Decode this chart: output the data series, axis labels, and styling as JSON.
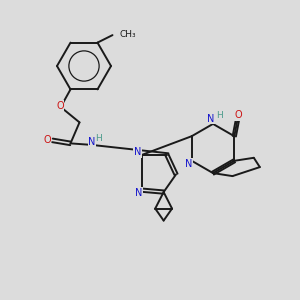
{
  "bg_color": "#dcdcdc",
  "bond_color": "#1a1a1a",
  "n_color": "#1414cc",
  "o_color": "#cc1414",
  "h_color": "#4a9a8a",
  "figsize": [
    3.0,
    3.0
  ],
  "dpi": 100,
  "xlim": [
    0,
    10
  ],
  "ylim": [
    0,
    10
  ]
}
